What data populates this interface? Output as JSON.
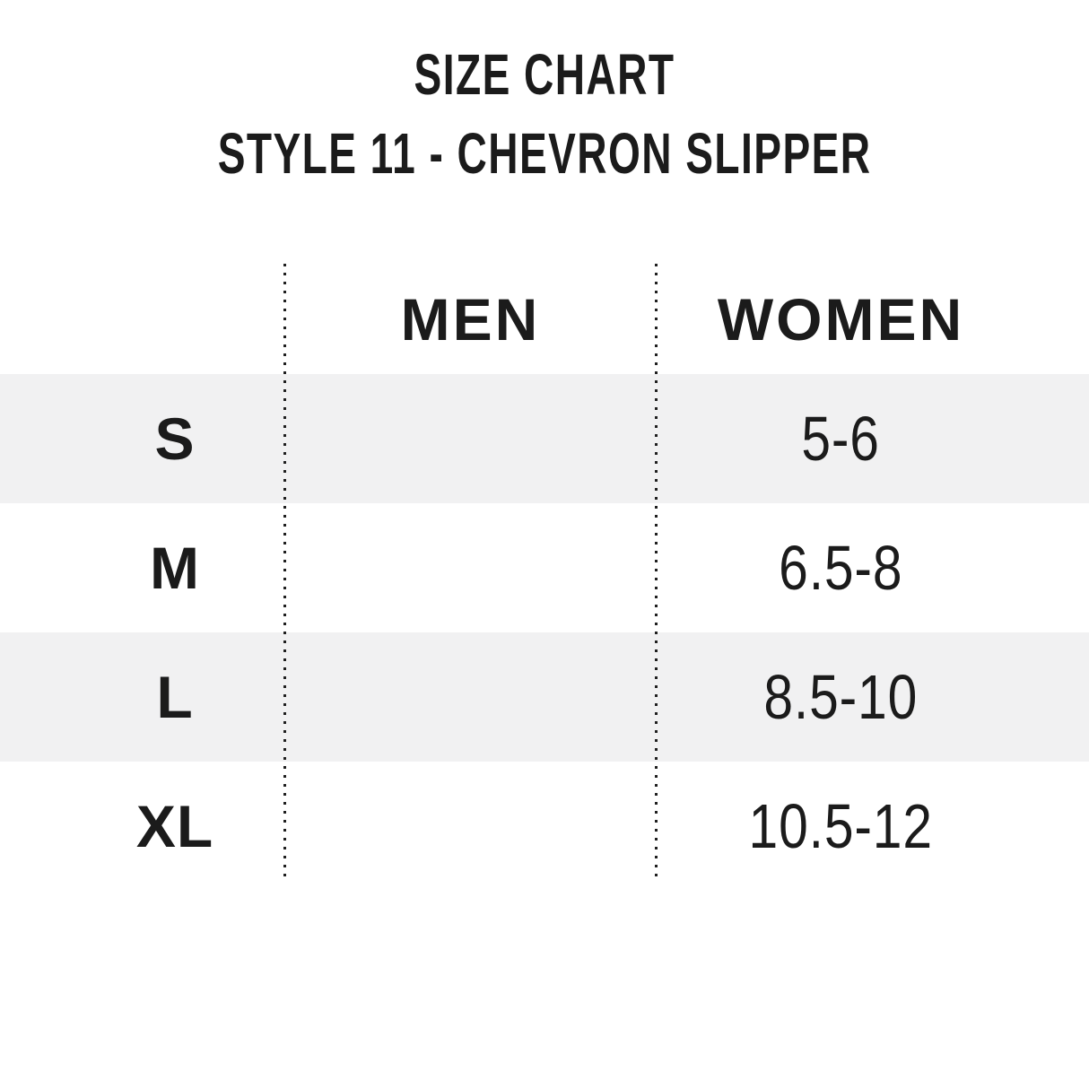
{
  "chart_data": {
    "type": "table",
    "title": "SIZE CHART",
    "subtitle": "STYLE 11 - CHEVRON SLIPPER",
    "columns": [
      "",
      "MEN",
      "WOMEN"
    ],
    "rows": [
      [
        "S",
        "",
        "5-6"
      ],
      [
        "M",
        "",
        "6.5-8"
      ],
      [
        "L",
        "",
        "8.5-10"
      ],
      [
        "XL",
        "",
        "10.5-12"
      ]
    ],
    "notes": "MEN column values are empty in the image; rows S and L have a light gray stripe background",
    "layout": {
      "legend": "none",
      "grid": "dotted vertical column dividers only",
      "striped_row_indices": [
        0,
        2
      ]
    }
  },
  "colors": {
    "background": "#ffffff",
    "row_stripe": "#f1f1f2",
    "text": "#1b1b1b",
    "divider_dots": "#1f1f1f"
  }
}
